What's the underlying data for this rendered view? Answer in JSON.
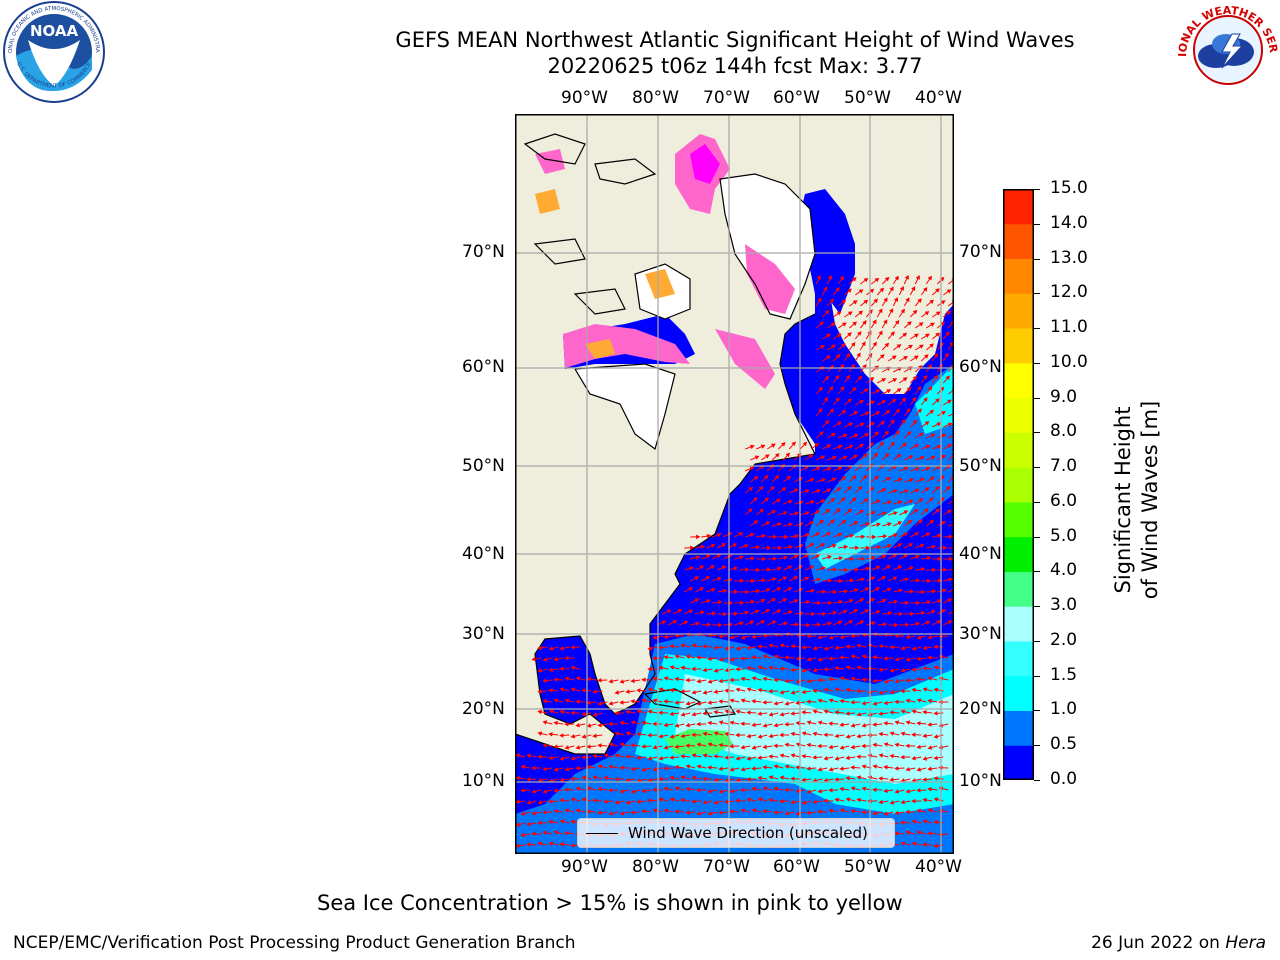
{
  "title": {
    "line1": "GEFS MEAN Northwest Atlantic Significant Height of Wind Waves",
    "line2": "20220625 t06z 144h fcst   Max: 3.77"
  },
  "logos": {
    "left": {
      "icon": "noaa-logo",
      "text": "NOAA",
      "ring_top": "NATIONAL OCEANIC AND ATMOSPHERIC ADMINISTRATION",
      "ring_bottom": "U.S. DEPARTMENT OF COMMERCE"
    },
    "right": {
      "icon": "nws-logo",
      "ring_text": "NATIONAL WEATHER SERVICE"
    }
  },
  "map": {
    "lon_labels": [
      "90°W",
      "80°W",
      "70°W",
      "60°W",
      "50°W",
      "40°W"
    ],
    "lat_labels": [
      "70°N",
      "60°N",
      "50°N",
      "40°N",
      "30°N",
      "20°N",
      "10°N"
    ],
    "land_color": "#efeedd",
    "ice_colors": [
      "#ff66cc",
      "#ff00ff",
      "#ffaa33",
      "#ffff66"
    ],
    "legend": "Wind Wave Direction (unscaled)",
    "arrow_color": "#ff0000"
  },
  "colorbar": {
    "label": "Significant Height of Wind Waves [m]",
    "ticks": [
      "0.0",
      "0.5",
      "1.0",
      "1.5",
      "2.0",
      "3.0",
      "4.0",
      "5.0",
      "6.0",
      "7.0",
      "8.0",
      "9.0",
      "10.0",
      "11.0",
      "12.0",
      "13.0",
      "14.0",
      "15.0"
    ],
    "colors": [
      "#0000ff",
      "#0077ff",
      "#00ffff",
      "#33ffff",
      "#aaffff",
      "#44ff88",
      "#00ee00",
      "#55ff00",
      "#aaff00",
      "#ccff00",
      "#eeff00",
      "#ffff00",
      "#ffcc00",
      "#ffaa00",
      "#ff8800",
      "#ff5500",
      "#ff2200",
      "#ff0000"
    ]
  },
  "caption": "Sea Ice Concentration > 15% is shown in pink to yellow",
  "footer": {
    "left": "NCEP/EMC/Verification Post Processing Product Generation Branch",
    "right_date": "26 Jun 2022 on",
    "right_host": "Hera"
  }
}
